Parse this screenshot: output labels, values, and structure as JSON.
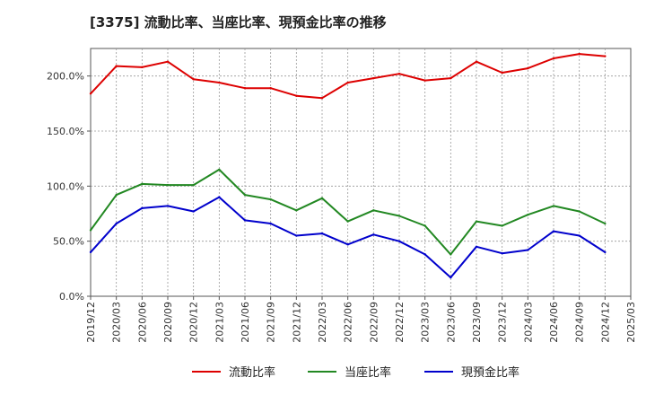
{
  "chart_data": {
    "type": "line",
    "title": "[3375]  流動比率、当座比率、現預金比率の推移",
    "xlabel": "",
    "ylabel": "",
    "ylim": [
      0,
      225
    ],
    "yticks": [
      0,
      50,
      100,
      150,
      200
    ],
    "ytick_labels": [
      "0.0%",
      "50.0%",
      "100.0%",
      "150.0%",
      "200.0%"
    ],
    "x_tick_labels": [
      "2019/12",
      "2020/03",
      "2020/06",
      "2020/09",
      "2020/12",
      "2021/03",
      "2021/06",
      "2021/09",
      "2021/12",
      "2022/03",
      "2022/06",
      "2022/09",
      "2022/12",
      "2023/03",
      "2023/06",
      "2023/09",
      "2023/12",
      "2024/03",
      "2024/06",
      "2024/09",
      "2024/12",
      "2025/03"
    ],
    "categories": [
      "2019/12",
      "2020/03",
      "2020/06",
      "2020/09",
      "2020/12",
      "2021/03",
      "2021/06",
      "2021/09",
      "2021/12",
      "2022/03",
      "2022/06",
      "2022/09",
      "2022/12",
      "2023/03",
      "2023/06",
      "2023/09",
      "2023/12",
      "2024/03",
      "2024/06",
      "2024/09",
      "2024/12"
    ],
    "grid": true,
    "legend_position": "bottom",
    "series": [
      {
        "name": "流動比率",
        "color": "#dd0000",
        "values": [
          184,
          209,
          208,
          213,
          197,
          194,
          189,
          189,
          182,
          180,
          194,
          198,
          202,
          196,
          198,
          213,
          203,
          207,
          216,
          220,
          218
        ]
      },
      {
        "name": "当座比率",
        "color": "#228822",
        "values": [
          60,
          92,
          102,
          101,
          101,
          115,
          92,
          88,
          78,
          89,
          68,
          78,
          73,
          64,
          38,
          68,
          64,
          74,
          82,
          77,
          66
        ]
      },
      {
        "name": "現預金比率",
        "color": "#0000cc",
        "values": [
          40,
          66,
          80,
          82,
          77,
          90,
          69,
          66,
          55,
          57,
          47,
          56,
          50,
          38,
          17,
          45,
          39,
          42,
          59,
          55,
          40
        ]
      }
    ]
  }
}
